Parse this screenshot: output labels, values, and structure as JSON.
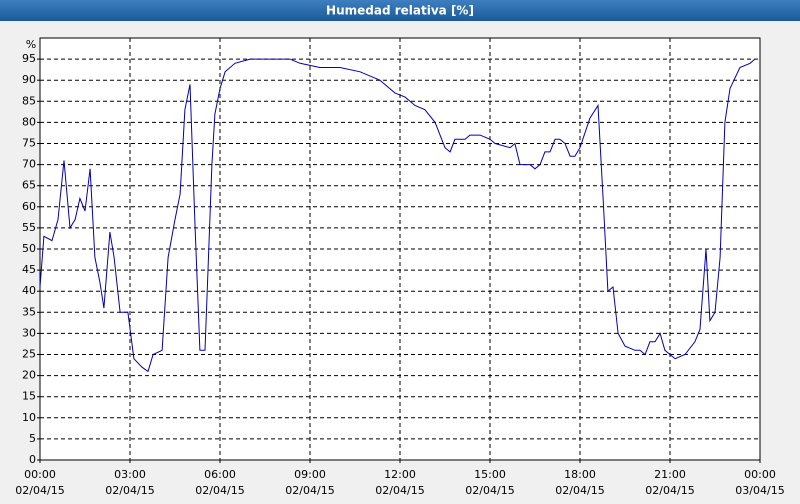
{
  "chart_data": {
    "type": "line",
    "title": "Humedad relativa [%]",
    "y_unit": "%",
    "x": [
      0,
      0.13,
      0.4,
      0.6,
      0.8,
      1.0,
      1.17,
      1.33,
      1.5,
      1.67,
      1.83,
      2.0,
      2.13,
      2.33,
      2.47,
      2.67,
      2.93,
      3.13,
      3.4,
      3.6,
      3.77,
      4.07,
      4.27,
      4.5,
      4.67,
      4.83,
      5.0,
      5.17,
      5.33,
      5.5,
      5.6,
      5.73,
      5.83,
      6.0,
      6.17,
      6.5,
      7.0,
      7.67,
      8.33,
      8.67,
      9.33,
      10.0,
      10.67,
      11.33,
      11.83,
      12.17,
      12.5,
      12.83,
      13.17,
      13.5,
      13.67,
      13.83,
      14.17,
      14.33,
      14.67,
      15.0,
      15.17,
      15.67,
      15.83,
      16.0,
      16.33,
      16.5,
      16.67,
      16.83,
      17.0,
      17.17,
      17.33,
      17.5,
      17.67,
      17.83,
      18.0,
      18.33,
      18.6,
      18.77,
      18.93,
      19.1,
      19.27,
      19.5,
      19.83,
      20.0,
      20.17,
      20.33,
      20.5,
      20.67,
      20.83,
      21.0,
      21.17,
      21.5,
      21.83,
      22.0,
      22.2,
      22.33,
      22.5,
      22.67,
      22.83,
      23.0,
      23.33,
      23.67,
      23.83
    ],
    "series": [
      {
        "name": "Humedad relativa",
        "color": "#0000b4",
        "values": [
          41,
          53,
          52,
          57,
          71,
          55,
          57,
          62,
          59,
          69,
          48,
          42,
          36,
          54,
          48,
          35,
          35,
          24,
          22,
          21,
          25,
          26,
          48,
          57,
          63,
          83,
          89,
          55,
          26,
          26,
          45,
          70,
          82,
          88,
          92,
          94,
          95,
          95,
          95,
          94,
          93,
          93,
          92,
          90,
          87,
          86,
          84,
          83,
          80,
          74,
          73,
          76,
          76,
          77,
          77,
          76,
          75,
          74,
          75,
          70,
          70,
          69,
          70,
          73,
          73,
          76,
          76,
          75,
          72,
          72,
          74,
          81,
          84,
          62,
          40,
          41,
          30,
          27,
          26,
          26,
          25,
          28,
          28,
          30,
          26,
          25,
          24,
          25,
          28,
          31,
          50,
          33,
          35,
          48,
          80,
          88,
          93,
          94,
          95
        ]
      }
    ],
    "xlim": [
      0,
      24
    ],
    "xticks": [
      {
        "value": 0,
        "label": "00:00"
      },
      {
        "value": 3,
        "label": "03:00"
      },
      {
        "value": 6,
        "label": "06:00"
      },
      {
        "value": 9,
        "label": "09:00"
      },
      {
        "value": 12,
        "label": "12:00"
      },
      {
        "value": 15,
        "label": "15:00"
      },
      {
        "value": 18,
        "label": "18:00"
      },
      {
        "value": 21,
        "label": "21:00"
      },
      {
        "value": 24,
        "label": "00:00"
      }
    ],
    "xtick_dates": [
      "02/04/15",
      "02/04/15",
      "02/04/15",
      "02/04/15",
      "02/04/15",
      "02/04/15",
      "02/04/15",
      "02/04/15",
      "03/04/15"
    ],
    "ylim": [
      0,
      100
    ],
    "yticks": [
      0,
      5,
      10,
      15,
      20,
      25,
      30,
      35,
      40,
      45,
      50,
      55,
      60,
      65,
      70,
      75,
      80,
      85,
      90,
      95
    ],
    "grid": true
  }
}
